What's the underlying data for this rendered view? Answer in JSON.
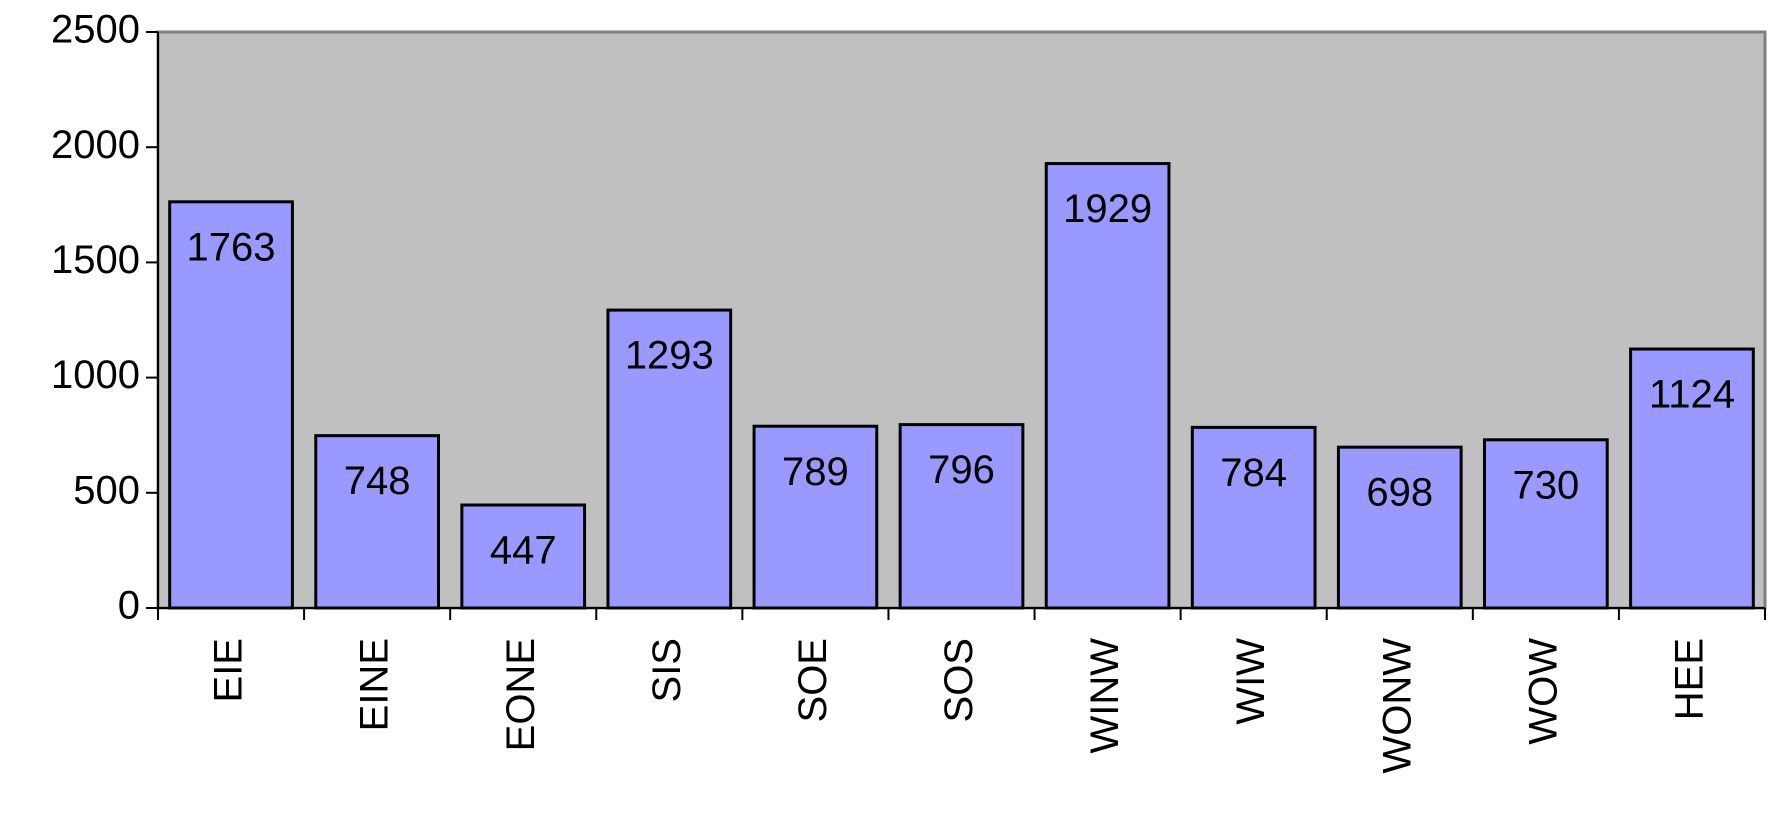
{
  "chart_data": {
    "type": "bar",
    "categories": [
      "EIE",
      "EINE",
      "EONE",
      "SIS",
      "SOE",
      "SOS",
      "WINW",
      "WIW",
      "WONW",
      "WOW",
      "HEE"
    ],
    "values": [
      1763,
      748,
      447,
      1293,
      789,
      796,
      1929,
      784,
      698,
      730,
      1124
    ],
    "color": "#9999ff",
    "background": "#c0c0c0",
    "ylim": [
      0,
      2500
    ],
    "yticks": [
      0,
      500,
      1000,
      1500,
      2000,
      2500
    ],
    "grid": false
  }
}
